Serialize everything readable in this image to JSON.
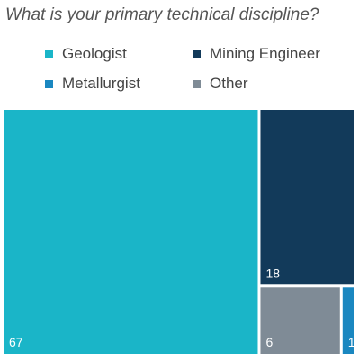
{
  "chart_data": {
    "type": "treemap",
    "title": "What is your primary technical discipline?",
    "legend_position": "top",
    "series": [
      {
        "name": "Geologist",
        "value": 67,
        "color": "#1ab5c8"
      },
      {
        "name": "Mining Engineer",
        "value": 18,
        "color": "#123a5a"
      },
      {
        "name": "Metallurgist",
        "value": 1,
        "color": "#1a87c0"
      },
      {
        "name": "Other",
        "value": 6,
        "color": "#7f8b96"
      }
    ]
  }
}
